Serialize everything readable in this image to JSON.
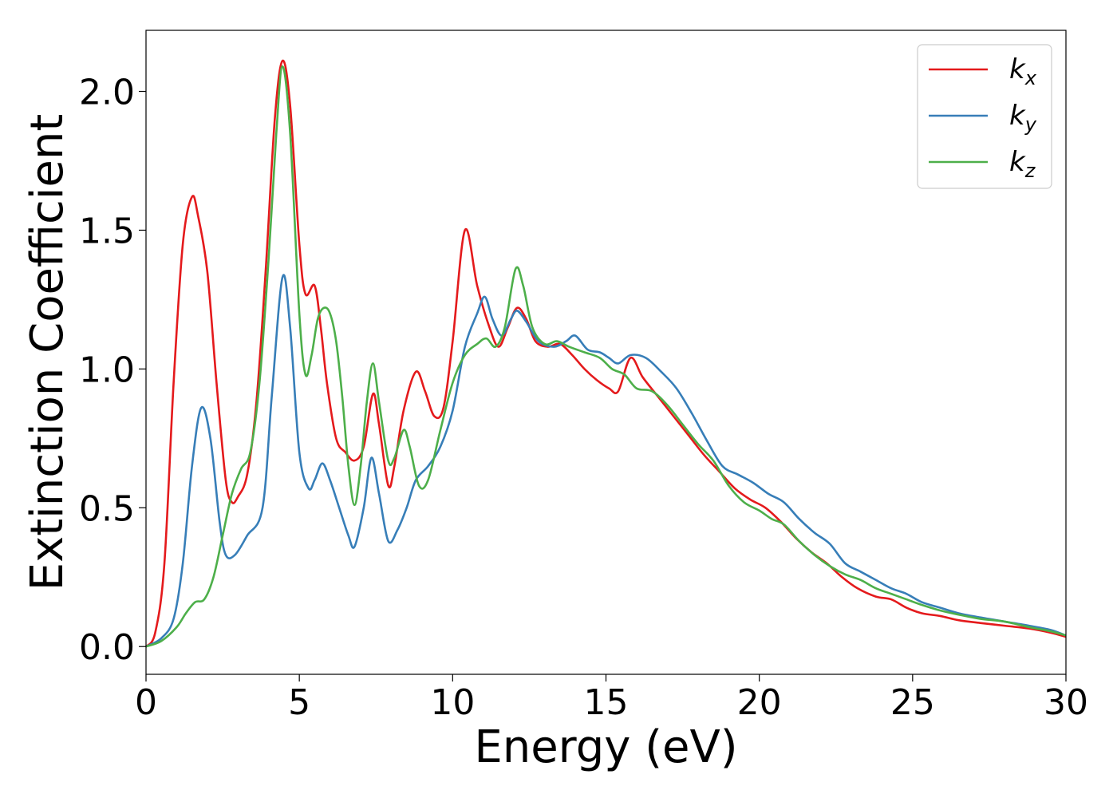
{
  "chart_data": {
    "type": "line",
    "xlabel": "Energy (eV)",
    "ylabel": "Extinction Coefficient",
    "xlim": [
      0,
      30
    ],
    "ylim": [
      -0.1,
      2.22
    ],
    "xticks": [
      0,
      5,
      10,
      15,
      20,
      25,
      30
    ],
    "xtick_labels": [
      "0",
      "5",
      "10",
      "15",
      "20",
      "25",
      "30"
    ],
    "yticks": [
      0.0,
      0.5,
      1.0,
      1.5,
      2.0
    ],
    "ytick_labels": [
      "0.0",
      "0.5",
      "1.0",
      "1.5",
      "2.0"
    ],
    "grid": false,
    "legend_position": "top-right",
    "series": [
      {
        "name": "k_x",
        "label_base": "k",
        "label_sub": "x",
        "color": "#e41a1c",
        "points": [
          [
            0,
            0
          ],
          [
            0.3,
            0.05
          ],
          [
            0.6,
            0.3
          ],
          [
            0.9,
            0.95
          ],
          [
            1.2,
            1.45
          ],
          [
            1.5,
            1.62
          ],
          [
            1.7,
            1.55
          ],
          [
            2.0,
            1.35
          ],
          [
            2.3,
            0.95
          ],
          [
            2.6,
            0.6
          ],
          [
            2.8,
            0.52
          ],
          [
            3.0,
            0.54
          ],
          [
            3.3,
            0.62
          ],
          [
            3.6,
            0.88
          ],
          [
            3.9,
            1.35
          ],
          [
            4.2,
            1.9
          ],
          [
            4.45,
            2.11
          ],
          [
            4.7,
            1.95
          ],
          [
            5.0,
            1.45
          ],
          [
            5.2,
            1.27
          ],
          [
            5.5,
            1.3
          ],
          [
            5.7,
            1.15
          ],
          [
            5.9,
            0.95
          ],
          [
            6.2,
            0.75
          ],
          [
            6.5,
            0.7
          ],
          [
            6.8,
            0.67
          ],
          [
            7.1,
            0.72
          ],
          [
            7.4,
            0.91
          ],
          [
            7.6,
            0.8
          ],
          [
            7.9,
            0.58
          ],
          [
            8.1,
            0.65
          ],
          [
            8.4,
            0.85
          ],
          [
            8.8,
            0.99
          ],
          [
            9.1,
            0.92
          ],
          [
            9.4,
            0.83
          ],
          [
            9.7,
            0.86
          ],
          [
            10.0,
            1.1
          ],
          [
            10.4,
            1.5
          ],
          [
            10.8,
            1.3
          ],
          [
            11.2,
            1.15
          ],
          [
            11.5,
            1.08
          ],
          [
            11.8,
            1.15
          ],
          [
            12.1,
            1.22
          ],
          [
            12.4,
            1.18
          ],
          [
            12.7,
            1.1
          ],
          [
            13.1,
            1.08
          ],
          [
            13.5,
            1.09
          ],
          [
            13.9,
            1.05
          ],
          [
            14.3,
            1.0
          ],
          [
            14.7,
            0.96
          ],
          [
            15.1,
            0.93
          ],
          [
            15.4,
            0.92
          ],
          [
            15.8,
            1.04
          ],
          [
            16.2,
            0.97
          ],
          [
            16.7,
            0.9
          ],
          [
            17.2,
            0.83
          ],
          [
            17.7,
            0.76
          ],
          [
            18.2,
            0.69
          ],
          [
            18.7,
            0.63
          ],
          [
            19.2,
            0.57
          ],
          [
            19.7,
            0.53
          ],
          [
            20.2,
            0.5
          ],
          [
            20.7,
            0.45
          ],
          [
            21.2,
            0.39
          ],
          [
            21.7,
            0.34
          ],
          [
            22.2,
            0.3
          ],
          [
            22.7,
            0.25
          ],
          [
            23.2,
            0.21
          ],
          [
            23.8,
            0.18
          ],
          [
            24.3,
            0.17
          ],
          [
            24.8,
            0.14
          ],
          [
            25.3,
            0.12
          ],
          [
            25.9,
            0.11
          ],
          [
            26.5,
            0.095
          ],
          [
            27.2,
            0.085
          ],
          [
            28.0,
            0.075
          ],
          [
            28.8,
            0.065
          ],
          [
            29.5,
            0.05
          ],
          [
            30,
            0.035
          ]
        ]
      },
      {
        "name": "k_y",
        "label_base": "k",
        "label_sub": "y",
        "color": "#377eb8",
        "points": [
          [
            0,
            0
          ],
          [
            0.5,
            0.03
          ],
          [
            0.9,
            0.1
          ],
          [
            1.2,
            0.3
          ],
          [
            1.5,
            0.65
          ],
          [
            1.8,
            0.86
          ],
          [
            2.1,
            0.75
          ],
          [
            2.4,
            0.45
          ],
          [
            2.6,
            0.33
          ],
          [
            2.9,
            0.33
          ],
          [
            3.3,
            0.4
          ],
          [
            3.8,
            0.5
          ],
          [
            4.1,
            0.9
          ],
          [
            4.45,
            1.33
          ],
          [
            4.7,
            1.15
          ],
          [
            5.0,
            0.7
          ],
          [
            5.3,
            0.57
          ],
          [
            5.5,
            0.6
          ],
          [
            5.75,
            0.66
          ],
          [
            6.0,
            0.6
          ],
          [
            6.3,
            0.5
          ],
          [
            6.6,
            0.4
          ],
          [
            6.8,
            0.36
          ],
          [
            7.1,
            0.5
          ],
          [
            7.35,
            0.68
          ],
          [
            7.6,
            0.55
          ],
          [
            7.9,
            0.38
          ],
          [
            8.2,
            0.42
          ],
          [
            8.5,
            0.5
          ],
          [
            8.8,
            0.6
          ],
          [
            9.2,
            0.65
          ],
          [
            9.6,
            0.72
          ],
          [
            10.0,
            0.85
          ],
          [
            10.4,
            1.08
          ],
          [
            10.8,
            1.2
          ],
          [
            11.05,
            1.26
          ],
          [
            11.3,
            1.18
          ],
          [
            11.6,
            1.12
          ],
          [
            11.9,
            1.18
          ],
          [
            12.1,
            1.21
          ],
          [
            12.4,
            1.17
          ],
          [
            12.8,
            1.1
          ],
          [
            13.3,
            1.08
          ],
          [
            13.7,
            1.1
          ],
          [
            14.0,
            1.12
          ],
          [
            14.4,
            1.07
          ],
          [
            14.8,
            1.06
          ],
          [
            15.1,
            1.04
          ],
          [
            15.4,
            1.02
          ],
          [
            15.8,
            1.05
          ],
          [
            16.3,
            1.04
          ],
          [
            16.8,
            0.99
          ],
          [
            17.3,
            0.93
          ],
          [
            17.8,
            0.84
          ],
          [
            18.3,
            0.74
          ],
          [
            18.8,
            0.65
          ],
          [
            19.3,
            0.62
          ],
          [
            19.8,
            0.59
          ],
          [
            20.3,
            0.55
          ],
          [
            20.8,
            0.52
          ],
          [
            21.3,
            0.46
          ],
          [
            21.8,
            0.41
          ],
          [
            22.3,
            0.37
          ],
          [
            22.8,
            0.3
          ],
          [
            23.3,
            0.27
          ],
          [
            23.8,
            0.24
          ],
          [
            24.3,
            0.21
          ],
          [
            24.8,
            0.19
          ],
          [
            25.3,
            0.16
          ],
          [
            25.9,
            0.14
          ],
          [
            26.5,
            0.12
          ],
          [
            27.2,
            0.105
          ],
          [
            28.0,
            0.09
          ],
          [
            28.8,
            0.075
          ],
          [
            29.5,
            0.06
          ],
          [
            30,
            0.04
          ]
        ]
      },
      {
        "name": "k_z",
        "label_base": "k",
        "label_sub": "z",
        "color": "#4daf4a",
        "points": [
          [
            0,
            0
          ],
          [
            0.5,
            0.02
          ],
          [
            1.0,
            0.07
          ],
          [
            1.3,
            0.12
          ],
          [
            1.6,
            0.16
          ],
          [
            1.9,
            0.17
          ],
          [
            2.2,
            0.25
          ],
          [
            2.5,
            0.4
          ],
          [
            2.8,
            0.55
          ],
          [
            3.1,
            0.64
          ],
          [
            3.4,
            0.7
          ],
          [
            3.7,
            0.95
          ],
          [
            4.0,
            1.4
          ],
          [
            4.25,
            1.85
          ],
          [
            4.45,
            2.09
          ],
          [
            4.7,
            1.85
          ],
          [
            5.0,
            1.2
          ],
          [
            5.2,
            0.98
          ],
          [
            5.4,
            1.05
          ],
          [
            5.6,
            1.18
          ],
          [
            5.8,
            1.22
          ],
          [
            6.0,
            1.2
          ],
          [
            6.2,
            1.1
          ],
          [
            6.4,
            0.9
          ],
          [
            6.6,
            0.65
          ],
          [
            6.8,
            0.51
          ],
          [
            7.0,
            0.65
          ],
          [
            7.2,
            0.88
          ],
          [
            7.4,
            1.02
          ],
          [
            7.6,
            0.88
          ],
          [
            7.9,
            0.67
          ],
          [
            8.1,
            0.68
          ],
          [
            8.4,
            0.78
          ],
          [
            8.6,
            0.72
          ],
          [
            8.9,
            0.58
          ],
          [
            9.2,
            0.6
          ],
          [
            9.6,
            0.78
          ],
          [
            10.0,
            0.95
          ],
          [
            10.4,
            1.05
          ],
          [
            10.8,
            1.09
          ],
          [
            11.1,
            1.11
          ],
          [
            11.4,
            1.08
          ],
          [
            11.7,
            1.15
          ],
          [
            12.05,
            1.36
          ],
          [
            12.3,
            1.3
          ],
          [
            12.6,
            1.15
          ],
          [
            13.0,
            1.09
          ],
          [
            13.4,
            1.1
          ],
          [
            13.8,
            1.08
          ],
          [
            14.3,
            1.06
          ],
          [
            14.8,
            1.04
          ],
          [
            15.2,
            1.0
          ],
          [
            15.6,
            0.98
          ],
          [
            16.0,
            0.93
          ],
          [
            16.5,
            0.92
          ],
          [
            17.0,
            0.87
          ],
          [
            17.5,
            0.8
          ],
          [
            18.0,
            0.73
          ],
          [
            18.5,
            0.67
          ],
          [
            19.0,
            0.58
          ],
          [
            19.5,
            0.52
          ],
          [
            20.0,
            0.49
          ],
          [
            20.4,
            0.46
          ],
          [
            20.8,
            0.44
          ],
          [
            21.3,
            0.38
          ],
          [
            21.8,
            0.33
          ],
          [
            22.3,
            0.29
          ],
          [
            22.8,
            0.26
          ],
          [
            23.3,
            0.24
          ],
          [
            23.8,
            0.21
          ],
          [
            24.3,
            0.19
          ],
          [
            24.8,
            0.17
          ],
          [
            25.3,
            0.15
          ],
          [
            25.9,
            0.13
          ],
          [
            26.5,
            0.115
          ],
          [
            27.2,
            0.1
          ],
          [
            28.0,
            0.09
          ],
          [
            28.8,
            0.07
          ],
          [
            29.5,
            0.055
          ],
          [
            30,
            0.04
          ]
        ]
      }
    ]
  }
}
